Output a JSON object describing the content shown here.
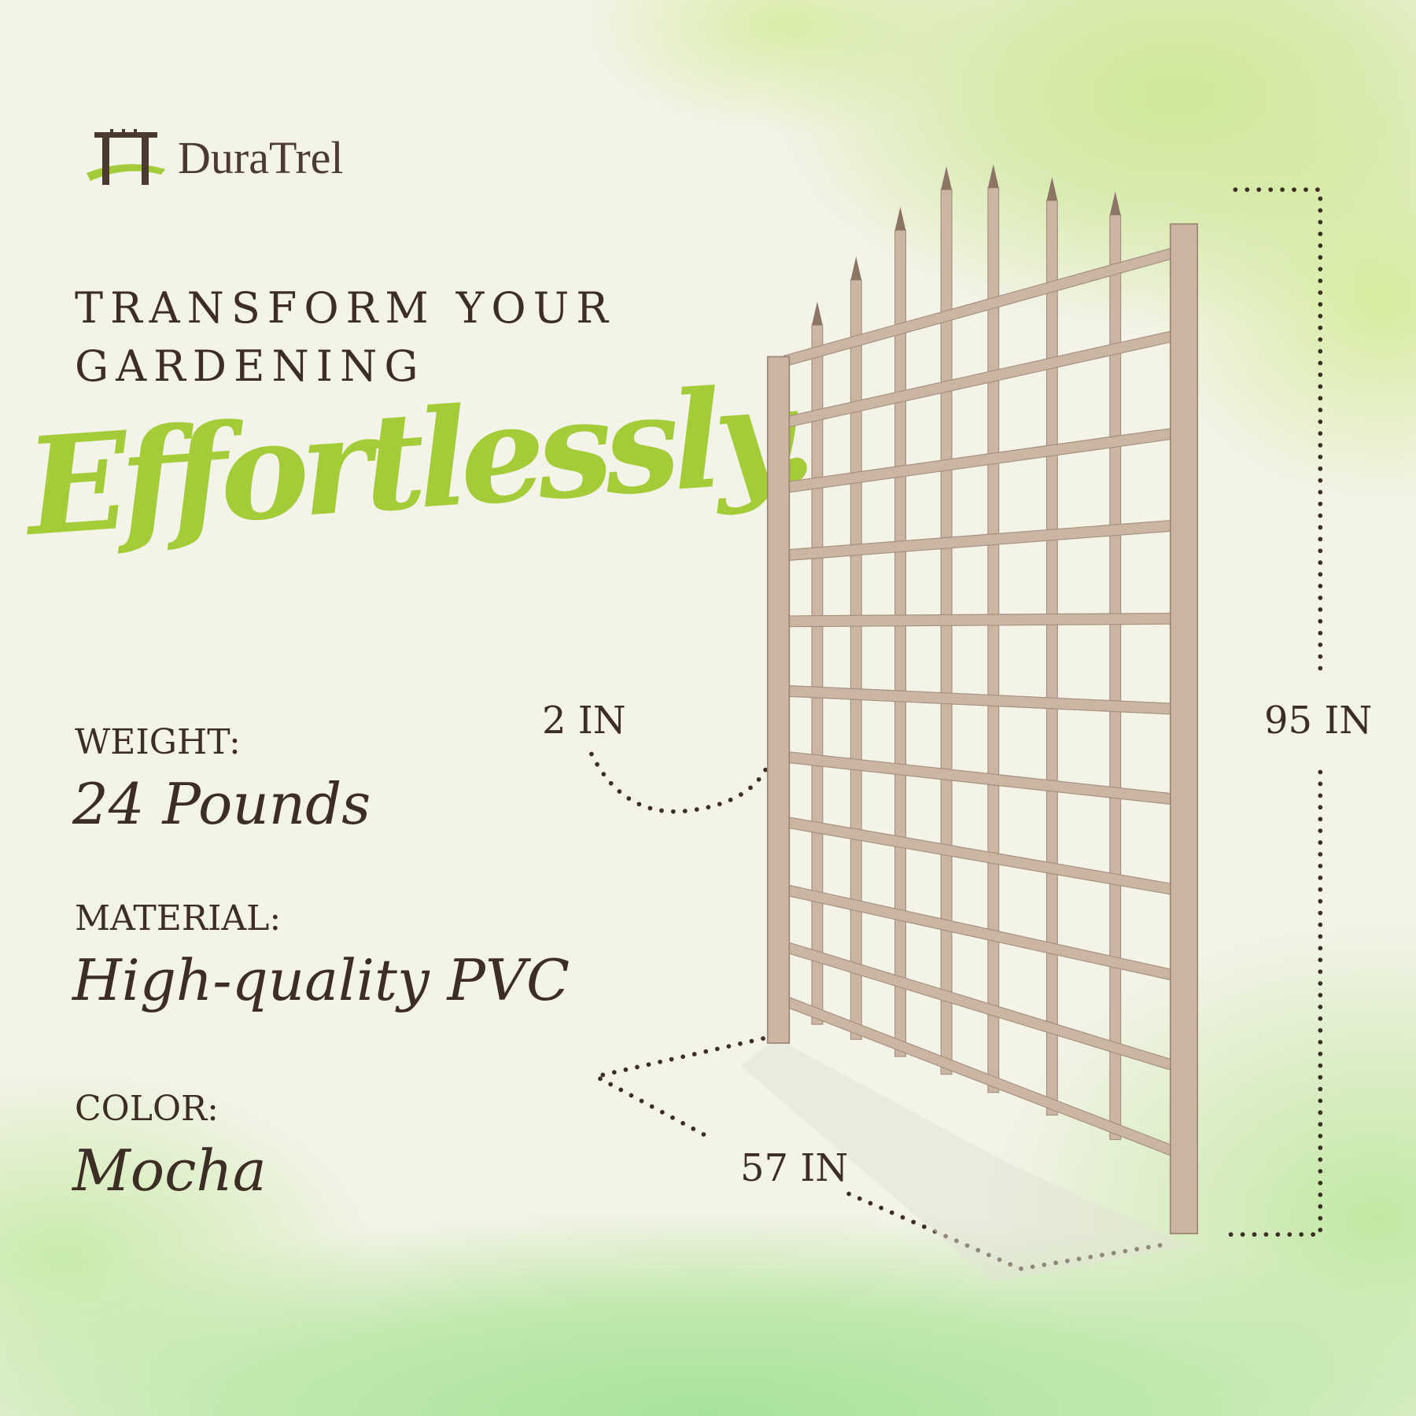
{
  "brand": {
    "logo_text": "DuraTrel"
  },
  "headline": {
    "line1": "TRANSFORM YOUR",
    "line2": "GARDENING",
    "script": "Effortlessly."
  },
  "specs": [
    {
      "label": "WEIGHT:",
      "value": "24 Pounds"
    },
    {
      "label": "MATERIAL:",
      "value": "High-quality PVC"
    },
    {
      "label": "COLOR:",
      "value": "Mocha"
    }
  ],
  "dimensions": {
    "depth": "2 IN",
    "height": "95 IN",
    "width": "57 IN"
  },
  "colors": {
    "accent": "#a3cc38",
    "text": "#3d2e25",
    "product": "#cbb5a3",
    "background": "#f3f3e7"
  }
}
